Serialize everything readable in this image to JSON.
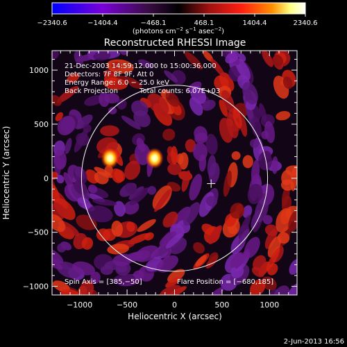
{
  "colorbar": {
    "tick_labels": [
      "−2340.6",
      "−1404.4",
      "−468.1",
      "468.1",
      "1404.4",
      "2340.6"
    ],
    "tick_values": [
      -2340.6,
      -1404.4,
      -468.1,
      468.1,
      1404.4,
      2340.6
    ],
    "units_main": "(photons cm",
    "units_exp1": "−2",
    "units_mid1": " s",
    "units_exp2": "−1",
    "units_mid2": " asec",
    "units_exp3": "−2",
    "units_end": ")",
    "colors": [
      "#0000ff",
      "#7a00d8",
      "#4a1048",
      "#000000",
      "#a01010",
      "#ff2010",
      "#ff9000",
      "#ffff80",
      "#ffffff"
    ]
  },
  "title": "Reconstructed RHESSI Image",
  "annotations": {
    "line1": "21-Dec-2003 14:59:12.000 to 15:00:36.000",
    "line2": "Detectors: 7F 8F 9F, Att 0",
    "line3": "Energy Range: 6.0 − 25.0 keV",
    "line4a": "Back Projection",
    "line4b": "Total counts: 6.07E+03",
    "spin_axis": "Spin Axis = [385,−50]",
    "flare_position": "Flare Position = [−680,185]"
  },
  "axes": {
    "xlabel": "Heliocentric X (arcsec)",
    "ylabel": "Heliocentric Y (arcsec)",
    "x_ticks": [
      "−1000",
      "−500",
      "0",
      "500",
      "1000"
    ],
    "y_ticks": [
      "1000",
      "500",
      "0",
      "−500",
      "−1000"
    ],
    "xlim": [
      -1290,
      1290
    ],
    "ylim": [
      -1080,
      1180
    ],
    "x_tick_values": [
      -1000,
      -500,
      0,
      500,
      1000
    ],
    "y_tick_values": [
      1000,
      500,
      0,
      -500,
      -1000
    ]
  },
  "solar_disk": {
    "center_x": 0,
    "center_y": 0,
    "radius_arcsec": 980
  },
  "spin_axis_marker": {
    "x": 385,
    "y": -50
  },
  "sources": [
    {
      "x": -680,
      "y": 185
    },
    {
      "x": -210,
      "y": 185
    }
  ],
  "footer_date": "2-Jun-2013 16:56"
}
